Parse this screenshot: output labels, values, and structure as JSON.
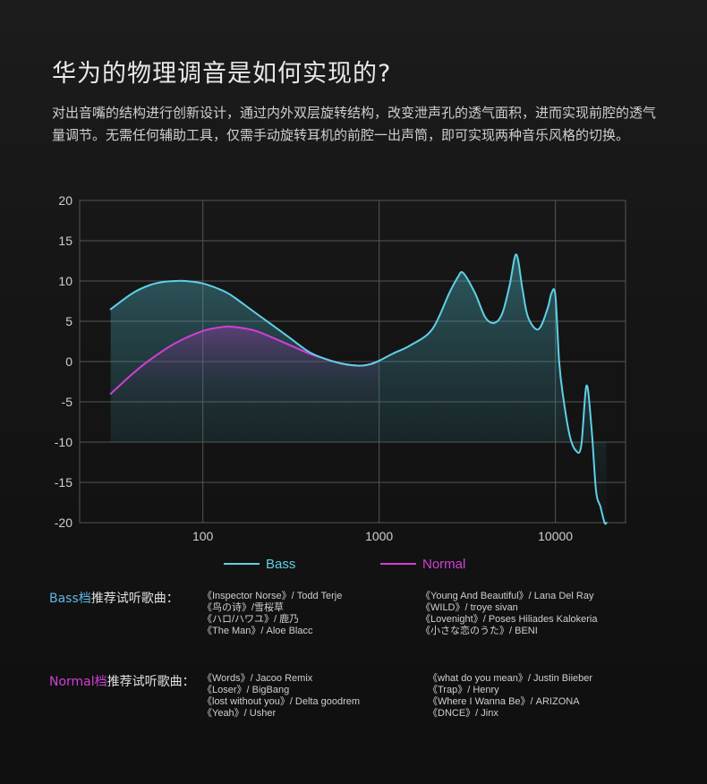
{
  "title": "华为的物理调音是如何实现的?",
  "description": "对出音嘴的结构进行创新设计，通过内外双层旋转结构，改变泄声孔的透气面积，进而实现前腔的透气量调节。无需任何辅助工具，仅需手动旋转耳机的前腔一出声筒，即可实现两种音乐风格的切换。",
  "colors": {
    "bass": "#5fd0e6",
    "normal": "#d23fd6",
    "grid": "#555555"
  },
  "chart_data": {
    "type": "line",
    "x_scale": "log",
    "xlim": [
      20,
      25000
    ],
    "ylim": [
      -20,
      20
    ],
    "y_ticks": [
      "20",
      "15",
      "10",
      "5",
      "0",
      "-5",
      "-10",
      "-15",
      "-20"
    ],
    "x_ticks": [
      "100",
      "1000",
      "10000"
    ],
    "grid": true,
    "legend_position": "bottom",
    "series": [
      {
        "name": "Bass",
        "x": [
          30,
          40,
          50,
          60,
          70,
          80,
          100,
          130,
          150,
          200,
          300,
          400,
          500,
          600,
          700,
          800,
          900,
          1000,
          1200,
          1500,
          2000,
          2500,
          2800,
          3000,
          3500,
          4000,
          4500,
          5000,
          5500,
          6000,
          6500,
          7000,
          8000,
          9000,
          9500,
          10000,
          10500,
          11000,
          12000,
          13000,
          14000,
          15000,
          16000,
          17000,
          18000,
          19000,
          19500
        ],
        "y": [
          6.5,
          8.5,
          9.5,
          9.9,
          10.0,
          10.0,
          9.7,
          8.8,
          8.0,
          6.0,
          3.2,
          1.2,
          0.3,
          -0.2,
          -0.45,
          -0.5,
          -0.3,
          0.1,
          1.0,
          2.0,
          4.0,
          8.5,
          10.5,
          11.0,
          8.5,
          5.5,
          4.8,
          6.0,
          9.5,
          13.3,
          9.0,
          5.5,
          4.0,
          6.5,
          8.5,
          8.2,
          0.0,
          -4.0,
          -9.0,
          -11.0,
          -10.5,
          -3.0,
          -8.0,
          -16.0,
          -18.0,
          -20.0,
          -20.0
        ],
        "color": "#5fd0e6"
      },
      {
        "name": "Normal",
        "x": [
          30,
          40,
          50,
          70,
          100,
          130,
          150,
          200,
          300,
          400,
          500,
          600,
          700,
          800,
          900,
          1000
        ],
        "y": [
          -4.0,
          -1.5,
          0.2,
          2.3,
          3.8,
          4.3,
          4.3,
          3.8,
          2.2,
          1.0,
          0.3,
          -0.2,
          -0.45,
          -0.5,
          -0.3,
          0.1
        ],
        "color": "#d23fd6"
      }
    ]
  },
  "recommendations": [
    {
      "label": "Bass档",
      "label_suffix": "推荐试听歌曲：",
      "color": "#5fb7e6",
      "left": [
        "《Inspector Norse》/ Todd Terje",
        "《鸟の诗》/雪桜草",
        "《ハロ/ハワユ》/ 鹿乃",
        "《The Man》/ Aloe Blacc"
      ],
      "right": [
        "《Young And Beautiful》/ Lana Del Ray",
        "《WILD》/ troye sivan",
        "《Lovenight》/ Poses Hiliades Kalokeria",
        "《小さな恋のうた》/ BENI"
      ]
    },
    {
      "label": "Normal档",
      "label_suffix": "推荐试听歌曲：",
      "color": "#d23fd6",
      "left": [
        "《Words》/ Jacoo Remix",
        "《Loser》/ BigBang",
        "《lost without you》/ Delta goodrem",
        "《Yeah》/ Usher"
      ],
      "right": [
        "《what do you mean》/ Justin Biieber",
        "《Trap》/ Henry",
        "《Where I Wanna Be》/ ARIZONA",
        "《DNCE》/ Jinx"
      ]
    }
  ]
}
